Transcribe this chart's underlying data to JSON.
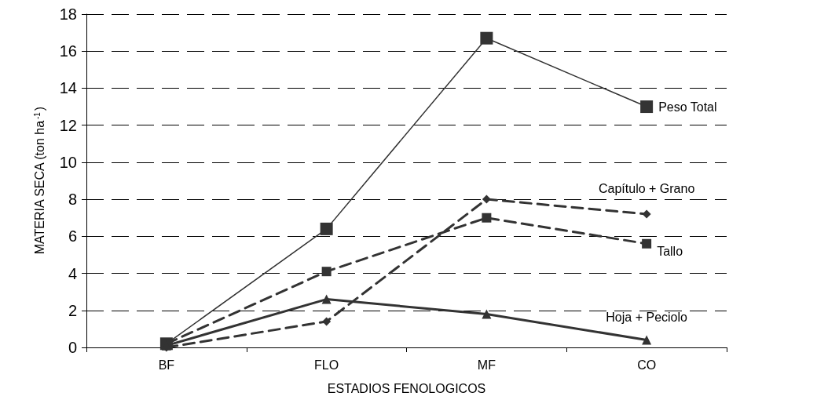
{
  "chart_data": {
    "type": "line",
    "xlabel": "ESTADIOS FENOLOGICOS",
    "ylabel": "MATERIA SECA (ton ha$^{-1}$)",
    "categories": [
      "BF",
      "FLO",
      "MF",
      "CO"
    ],
    "series": [
      {
        "name": "Peso Total",
        "color": "#333333",
        "values": [
          0.2,
          6.4,
          16.7,
          13.0
        ],
        "marker": "square",
        "line_style": "solid"
      },
      {
        "name": "Capítulo + Grano",
        "color": "#333333",
        "values": [
          0.0,
          1.4,
          8.0,
          7.2
        ],
        "marker": "diamond",
        "line_style": "dashed"
      },
      {
        "name": "Tallo",
        "color": "#333333",
        "values": [
          0.2,
          4.1,
          7.0,
          5.6
        ],
        "marker": "square",
        "line_style": "dashed"
      },
      {
        "name": "Hoja + Peciolo",
        "color": "#333333",
        "values": [
          0.1,
          2.6,
          1.8,
          0.4
        ],
        "marker": "triangle",
        "line_style": "solid"
      }
    ],
    "ylim": [
      0,
      18
    ],
    "yticks": [
      0,
      2,
      4,
      6,
      8,
      10,
      12,
      14,
      16,
      18
    ],
    "grid": "y",
    "legend": false
  }
}
